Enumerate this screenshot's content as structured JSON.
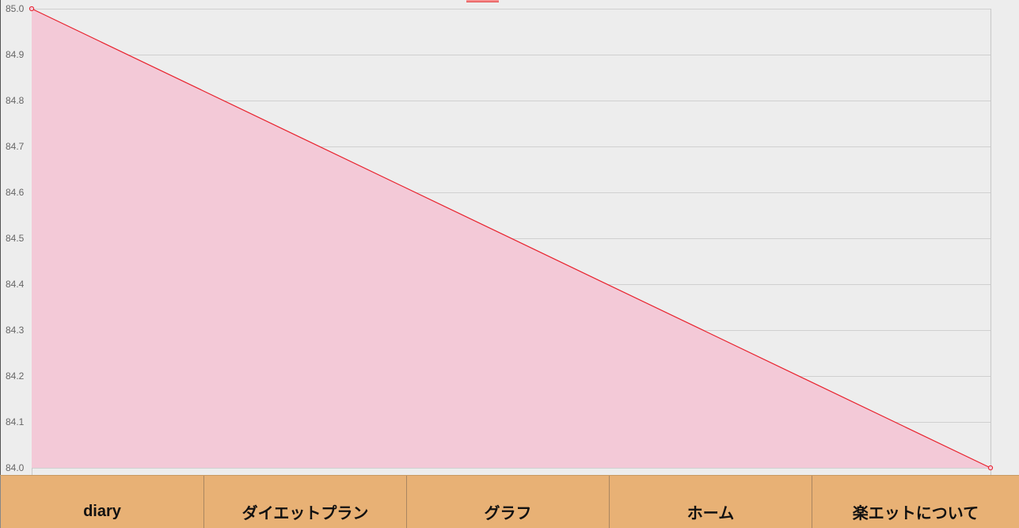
{
  "chart_data": {
    "type": "area",
    "x": [
      "",
      ""
    ],
    "series": [
      {
        "values": [
          85.0,
          84.0
        ],
        "color": "#e8232e",
        "fill": "#f3c9d7"
      }
    ],
    "ylim": [
      84.0,
      85.0
    ],
    "yticks": [
      "85.0",
      "84.9",
      "84.8",
      "84.7",
      "84.6",
      "84.5",
      "84.4",
      "84.3",
      "84.2",
      "84.1",
      "84.0"
    ],
    "grid": true,
    "legend": "top-center",
    "legend_swatch_color": "#f78a8a"
  },
  "nav": {
    "items": [
      {
        "label": "diary"
      },
      {
        "label": "ダイエットプラン"
      },
      {
        "label": "グラフ"
      },
      {
        "label": "ホーム"
      },
      {
        "label": "楽エットについて"
      }
    ]
  },
  "colors": {
    "background": "#ededed",
    "nav_background": "#e8b175"
  }
}
